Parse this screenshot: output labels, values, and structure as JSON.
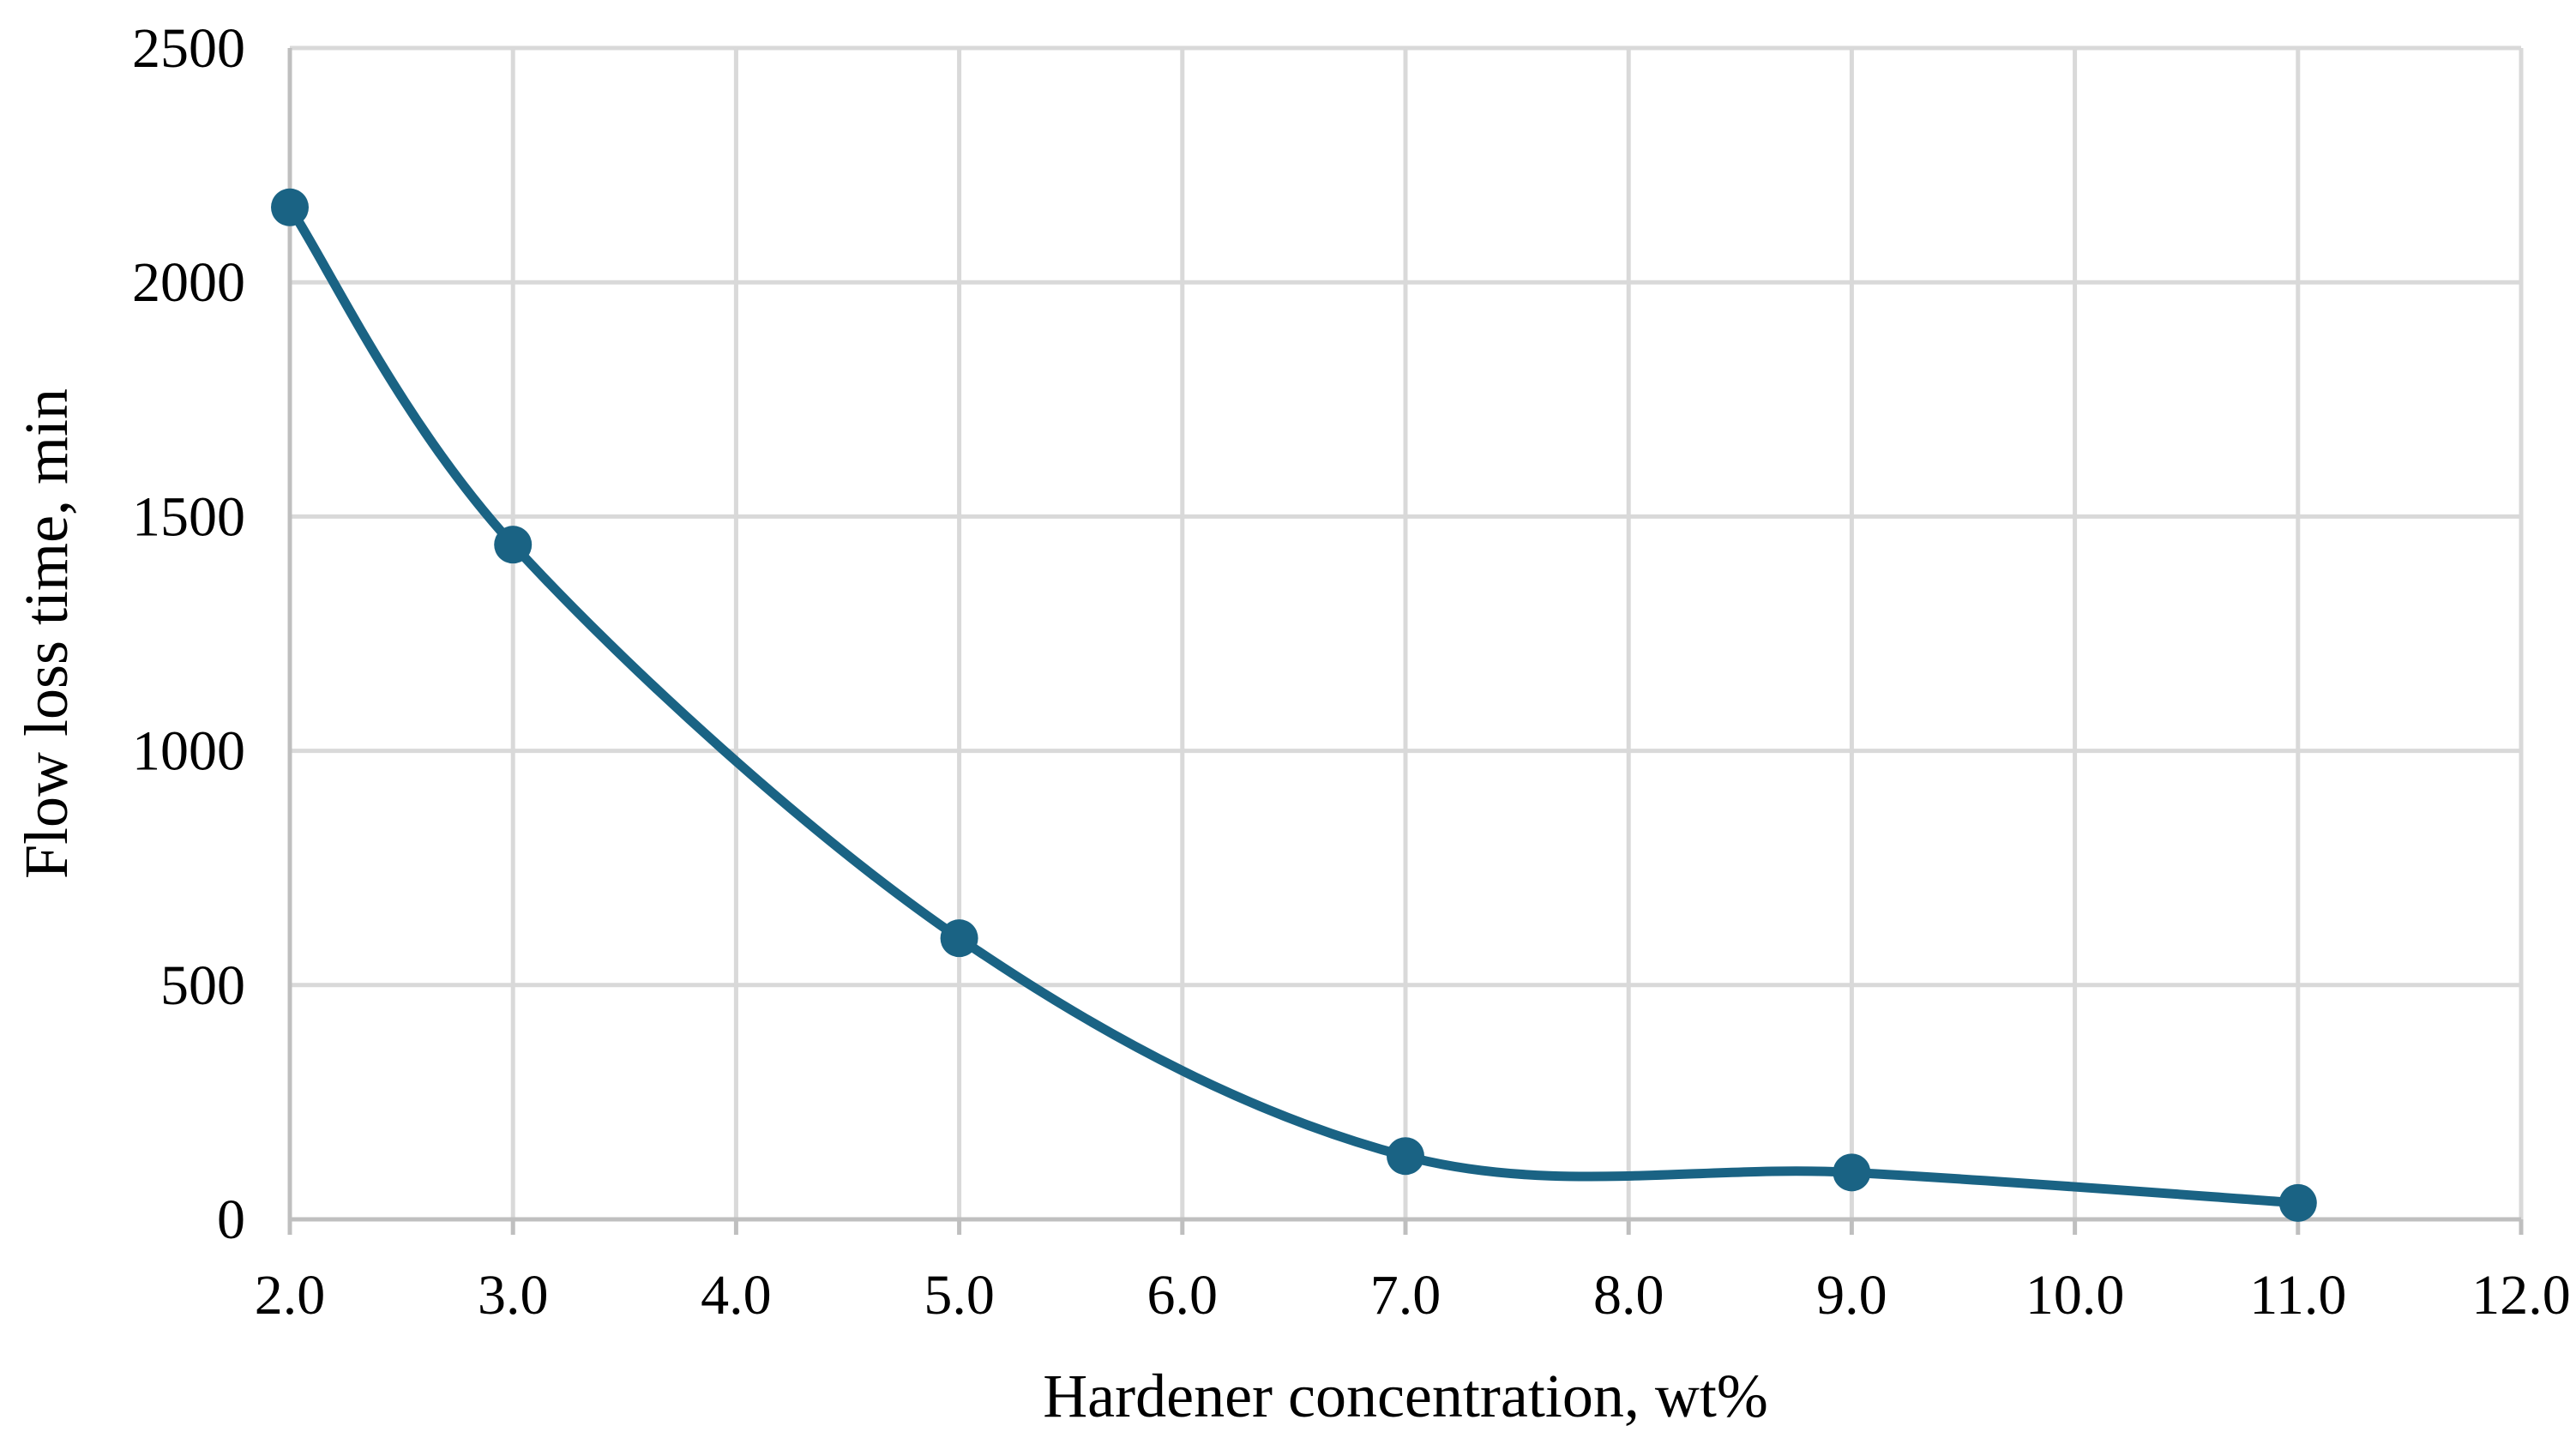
{
  "chart_data": {
    "type": "line",
    "smooth": true,
    "title": "",
    "xlabel": "Hardener concentration, wt%",
    "ylabel": "Flow loss time, min",
    "xlim": [
      2.0,
      12.0
    ],
    "ylim": [
      0,
      2500
    ],
    "x_ticks": [
      2.0,
      3.0,
      4.0,
      5.0,
      6.0,
      7.0,
      8.0,
      9.0,
      10.0,
      11.0,
      12.0
    ],
    "x_tick_labels": [
      "2.0",
      "3.0",
      "4.0",
      "5.0",
      "6.0",
      "7.0",
      "8.0",
      "9.0",
      "10.0",
      "11.0",
      "12.0"
    ],
    "y_ticks": [
      0,
      500,
      1000,
      1500,
      2000,
      2500
    ],
    "y_tick_labels": [
      "0",
      "500",
      "1000",
      "1500",
      "2000",
      "2500"
    ],
    "grid": true,
    "legend": false,
    "series": [
      {
        "color": "#1a6384",
        "marker": "circle",
        "x": [
          2.0,
          3.0,
          5.0,
          7.0,
          9.0,
          11.0
        ],
        "y": [
          2160,
          1440,
          600,
          135,
          100,
          35
        ]
      }
    ]
  },
  "colors": {
    "grid": "#d9d9d9",
    "axis": "#bfbfbf",
    "series": "#1a6384"
  }
}
